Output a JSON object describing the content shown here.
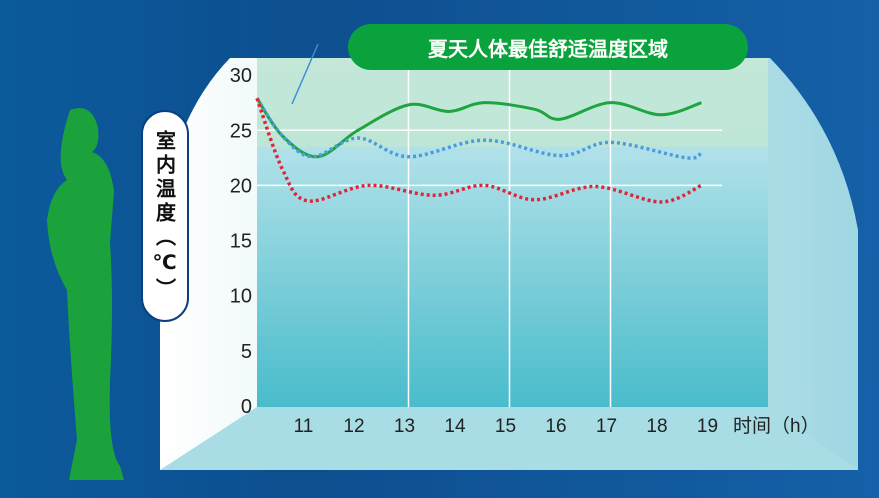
{
  "chart_data": {
    "type": "line",
    "title": "夏天人体最佳舒适温度区域",
    "ylabel": "室内温度（℃）",
    "xlabel": "时间（h）",
    "xlim": [
      10,
      19
    ],
    "ylim": [
      0,
      30
    ],
    "yticks": [
      "0",
      "5",
      "10",
      "15",
      "20",
      "25",
      "30"
    ],
    "xticks": [
      "11",
      "12",
      "13",
      "14",
      "15",
      "16",
      "17",
      "18",
      "19"
    ],
    "comfort_zone": [
      23.5,
      30
    ],
    "grid": true,
    "series": [
      {
        "color": "#1ea53f",
        "style": "solid",
        "x": [
          10,
          10.5,
          11.2,
          12,
          13,
          13.8,
          14.5,
          15.5,
          16,
          17,
          18,
          18.8
        ],
        "y": [
          27.9,
          24.5,
          22.6,
          25,
          27.3,
          26.7,
          27.5,
          26.9,
          26.0,
          27.5,
          26.4,
          27.5
        ]
      },
      {
        "color": "#4a9be0",
        "style": "dotted",
        "x": [
          10,
          10.5,
          11.1,
          12,
          13,
          14.5,
          16,
          17,
          18.5,
          18.8
        ],
        "y": [
          27.9,
          24.5,
          22.6,
          24.3,
          22.6,
          24.1,
          22.7,
          23.9,
          22.5,
          23.0
        ]
      },
      {
        "color": "#e0243a",
        "style": "dotted",
        "x": [
          10,
          10.5,
          11,
          12.2,
          13.5,
          14.5,
          15.5,
          16.7,
          18,
          18.8
        ],
        "y": [
          27.9,
          21.5,
          18.6,
          20.0,
          19.1,
          20.0,
          18.7,
          19.9,
          18.5,
          20.0
        ]
      }
    ]
  }
}
